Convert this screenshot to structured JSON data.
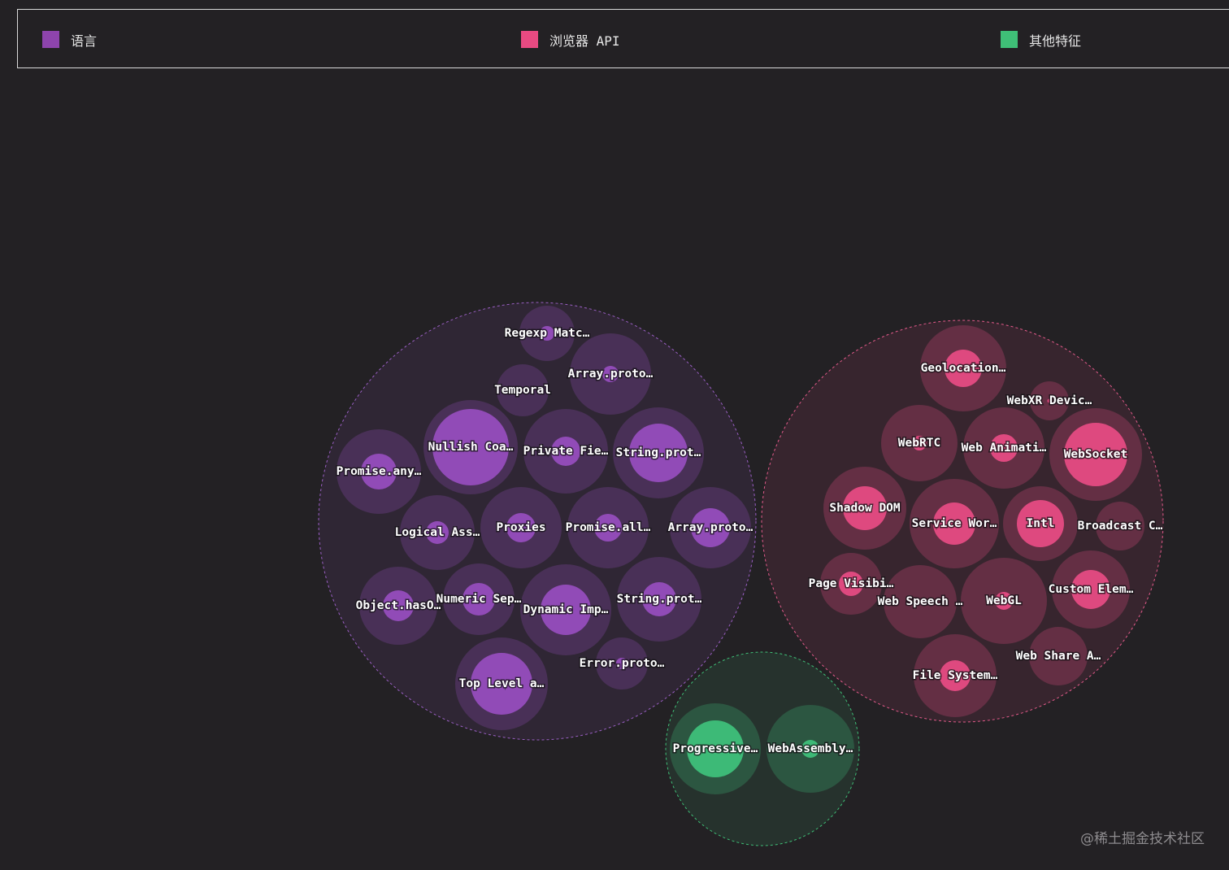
{
  "legend": [
    {
      "label": "语言",
      "color": "#8e44ad"
    },
    {
      "label": "浏览器 API",
      "color": "#e84a82"
    },
    {
      "label": "其他特征",
      "color": "#3fbf77"
    }
  ],
  "watermark": "@稀土掘金技术社区",
  "chart_data": {
    "type": "bubble",
    "title": "",
    "groups": [
      {
        "name": "语言",
        "color": "#9b4fc4",
        "items": [
          {
            "label": "Regexp Matc…",
            "size": 34,
            "value": 9
          },
          {
            "label": "Array.proto…",
            "size": 50,
            "value": 10
          },
          {
            "label": "Temporal",
            "size": 32,
            "value": 0
          },
          {
            "label": "Nullish Coa…",
            "size": 58,
            "value": 47
          },
          {
            "label": "Private Fie…",
            "size": 52,
            "value": 18
          },
          {
            "label": "String.prot…",
            "size": 56,
            "value": 36
          },
          {
            "label": "Promise.any…",
            "size": 52,
            "value": 22
          },
          {
            "label": "Logical Ass…",
            "size": 46,
            "value": 14
          },
          {
            "label": "Proxies",
            "size": 50,
            "value": 18
          },
          {
            "label": "Promise.all…",
            "size": 50,
            "value": 17
          },
          {
            "label": "Array.proto…",
            "size": 50,
            "value": 24
          },
          {
            "label": "Object.hasO…",
            "size": 48,
            "value": 19
          },
          {
            "label": "Numeric Sep…",
            "size": 44,
            "value": 20
          },
          {
            "label": "Dynamic Imp…",
            "size": 56,
            "value": 31
          },
          {
            "label": "String.prot…",
            "size": 52,
            "value": 21
          },
          {
            "label": "Error.proto…",
            "size": 32,
            "value": 7
          },
          {
            "label": "Top Level a…",
            "size": 57,
            "value": 38
          }
        ]
      },
      {
        "name": "浏览器 API",
        "color": "#ee4d87",
        "items": [
          {
            "label": "Geolocation…",
            "size": 53,
            "value": 23
          },
          {
            "label": "WebXR Devic…",
            "size": 24,
            "value": 0
          },
          {
            "label": "WebRTC",
            "size": 47,
            "value": 9
          },
          {
            "label": "Web Animati…",
            "size": 50,
            "value": 17
          },
          {
            "label": "WebSocket",
            "size": 57,
            "value": 39
          },
          {
            "label": "Shadow DOM",
            "size": 51,
            "value": 27
          },
          {
            "label": "Service Wor…",
            "size": 55,
            "value": 26
          },
          {
            "label": "Intl",
            "size": 46,
            "value": 29
          },
          {
            "label": "Broadcast C…",
            "size": 30,
            "value": 0
          },
          {
            "label": "Page Visibi…",
            "size": 38,
            "value": 15
          },
          {
            "label": "Web Speech …",
            "size": 45,
            "value": 0
          },
          {
            "label": "WebGL",
            "size": 53,
            "value": 11
          },
          {
            "label": "Custom Elem…",
            "size": 48,
            "value": 24
          },
          {
            "label": "Web Share A…",
            "size": 36,
            "value": 0
          },
          {
            "label": "File System…",
            "size": 51,
            "value": 19
          }
        ]
      },
      {
        "name": "其他特征",
        "color": "#3fc77e",
        "items": [
          {
            "label": "Progressive…",
            "size": 56,
            "value": 35
          },
          {
            "label": "WebAssembly…",
            "size": 54,
            "value": 11
          }
        ]
      }
    ]
  }
}
